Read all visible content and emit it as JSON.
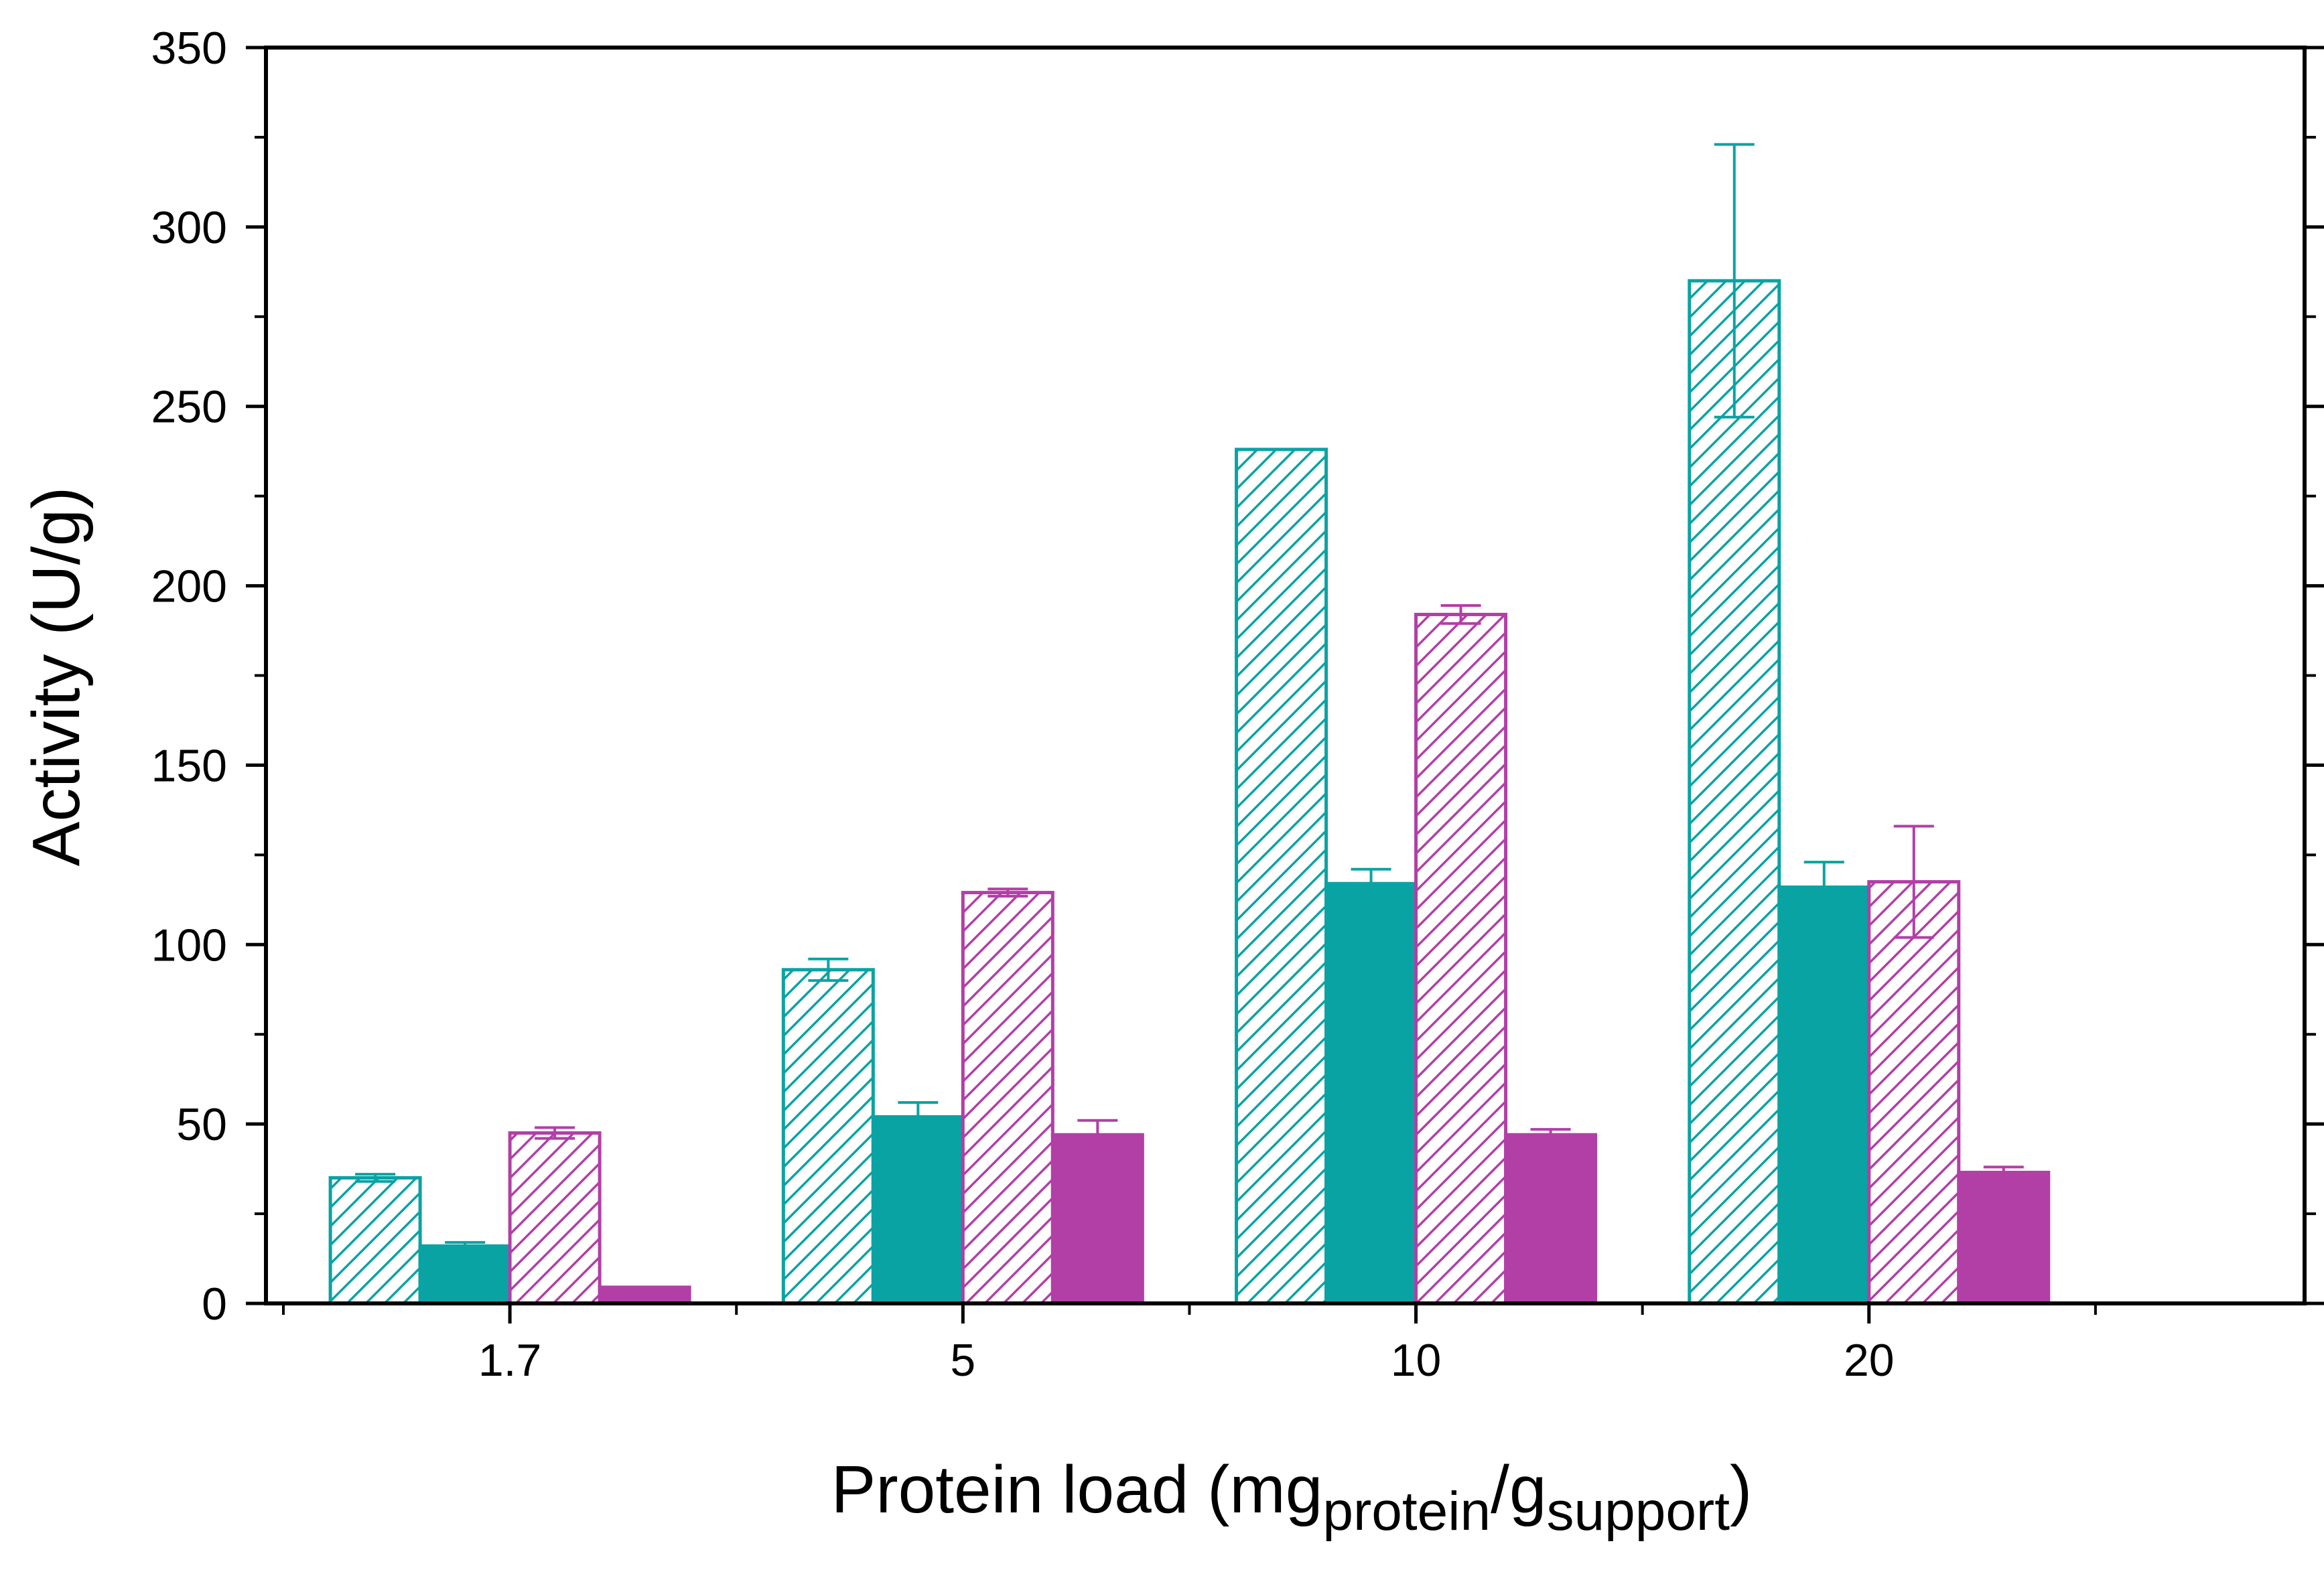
{
  "chart_data": {
    "type": "bar",
    "title": "",
    "xlabel": {
      "main": "Protein load (mg",
      "sub1": "protein",
      "slash": "/g",
      "sub2": "support",
      "close": ")"
    },
    "ylabel": "Activity (U/g)",
    "ylim": [
      0,
      350
    ],
    "yticks": [
      0,
      50,
      100,
      150,
      200,
      250,
      300,
      350
    ],
    "categories": [
      "1.7",
      "5",
      "10",
      "20"
    ],
    "grid": false,
    "legend": "none",
    "series": [
      {
        "name": "series-1",
        "color": "#0aa3a3",
        "pattern": "hatched",
        "values": [
          35,
          93,
          238,
          285
        ],
        "errors": [
          1,
          3,
          0,
          38
        ]
      },
      {
        "name": "series-2",
        "color": "#0aa3a3",
        "pattern": "solid",
        "values": [
          16,
          52,
          117,
          116
        ],
        "errors": [
          1,
          4,
          4,
          7
        ]
      },
      {
        "name": "series-3",
        "color": "#b23fa6",
        "pattern": "hatched",
        "values": [
          47.5,
          114.5,
          192,
          117.5
        ],
        "errors": [
          1.5,
          1,
          2.5,
          15.5
        ]
      },
      {
        "name": "series-4",
        "color": "#b23fa6",
        "pattern": "solid",
        "values": [
          4.5,
          47,
          47,
          36.5
        ],
        "errors": [
          0,
          4,
          1.5,
          1.5
        ]
      }
    ]
  }
}
